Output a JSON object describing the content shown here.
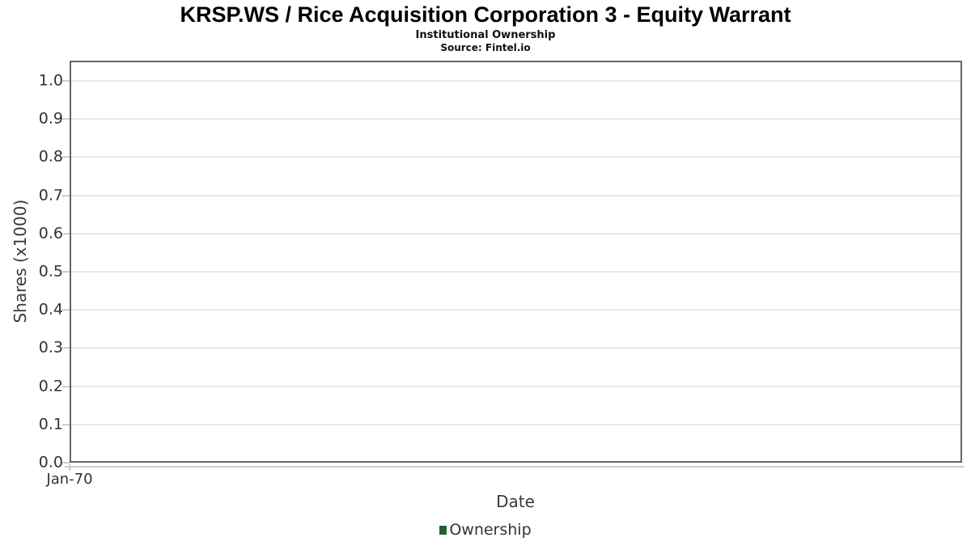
{
  "header": {
    "title": "KRSP.WS / Rice Acquisition Corporation 3 - Equity Warrant",
    "subtitle": "Institutional Ownership",
    "source": "Source: Fintel.io"
  },
  "axes": {
    "xlabel": "Date",
    "ylabel": "Shares (x1000)",
    "x_ticks": [
      "Jan-70"
    ],
    "y_ticks": [
      "1.0",
      "0.9",
      "0.8",
      "0.7",
      "0.6",
      "0.5",
      "0.4",
      "0.3",
      "0.2",
      "0.1",
      "0.0"
    ]
  },
  "legend": {
    "label": "Ownership",
    "marker_color": "#275d33"
  },
  "colors": {
    "plot_border": "#666666",
    "gridline": "#e8e8e8",
    "tick": "#cccccc",
    "tick_text": "#333333",
    "title_text": "#000000"
  },
  "chart_data": {
    "type": "line",
    "title": "KRSP.WS / Rice Acquisition Corporation 3 - Equity Warrant",
    "subtitle": "Institutional Ownership",
    "source": "Source: Fintel.io",
    "xlabel": "Date",
    "ylabel": "Shares (x1000)",
    "x_ticks": [
      "Jan-70"
    ],
    "y_ticks": [
      1.0,
      0.9,
      0.8,
      0.7,
      0.6,
      0.5,
      0.4,
      0.3,
      0.2,
      0.1,
      0.0
    ],
    "ylim": [
      0.0,
      1.05
    ],
    "grid": "horizontal",
    "legend_position": "bottom-center",
    "series": [
      {
        "name": "Ownership",
        "color": "#275d33",
        "x": [],
        "y": []
      }
    ],
    "note": "plot area is empty - no data points rendered"
  }
}
